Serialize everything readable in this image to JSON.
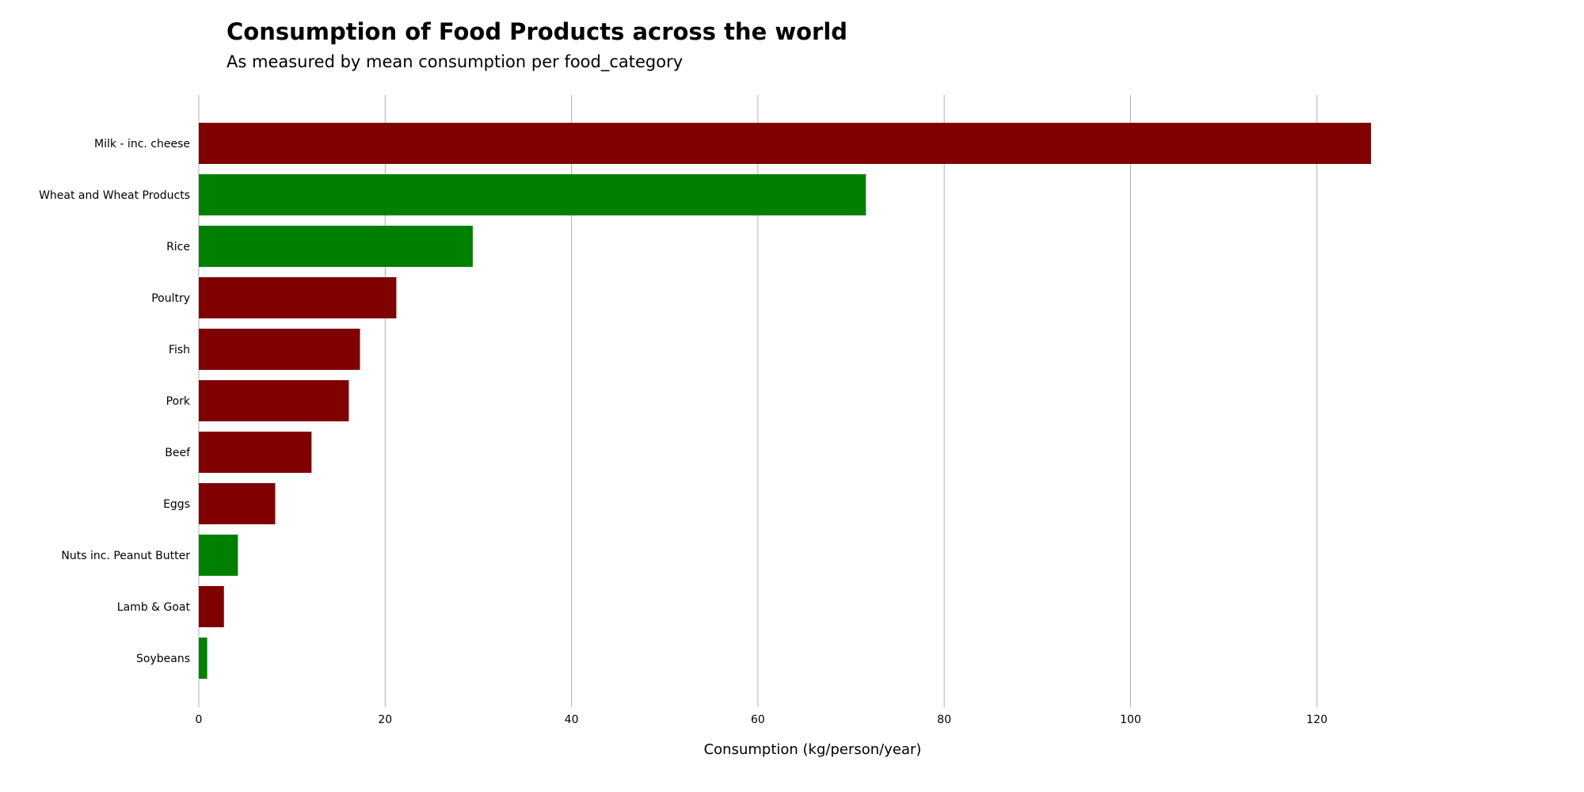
{
  "chart_data": {
    "type": "bar",
    "orientation": "horizontal",
    "title": "Consumption of Food Products across the world",
    "subtitle": "As measured by mean consumption per food_category",
    "xlabel": "Consumption (kg/person/year)",
    "ylabel": "",
    "xlim": [
      0,
      145
    ],
    "xticks": [
      0,
      20,
      40,
      60,
      80,
      100,
      120
    ],
    "grid": "vertical",
    "legend": "none",
    "colors": {
      "animal": "#800000",
      "plant": "#008000",
      "grid": "#b0b0b0"
    },
    "categories": [
      "Milk - inc. cheese",
      "Wheat and Wheat Products",
      "Rice",
      "Poultry",
      "Fish",
      "Pork",
      "Beef",
      "Eggs",
      "Nuts inc. Peanut Butter",
      "Lamb & Goat",
      "Soybeans"
    ],
    "values": [
      125.8,
      71.6,
      29.4,
      21.2,
      17.3,
      16.1,
      12.1,
      8.2,
      4.2,
      2.7,
      0.9
    ],
    "bar_colors": [
      "#800000",
      "#008000",
      "#008000",
      "#800000",
      "#800000",
      "#800000",
      "#800000",
      "#800000",
      "#008000",
      "#800000",
      "#008000"
    ]
  }
}
